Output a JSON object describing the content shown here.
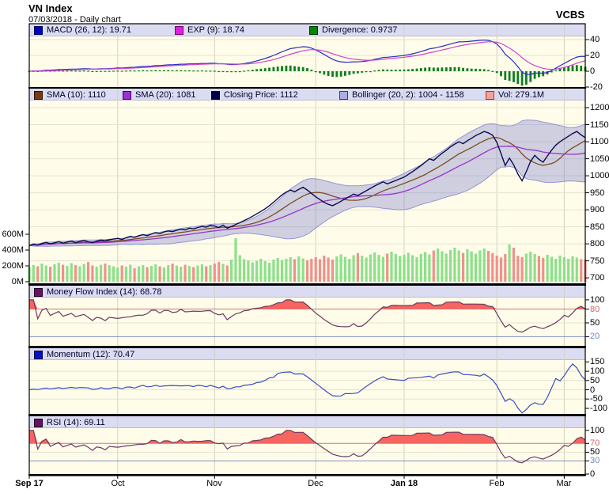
{
  "header": {
    "title": "VN Index",
    "subtitle": "07/03/2018 - Daily chart",
    "brand": "VCBS"
  },
  "panels": {
    "macd": {
      "legend": [
        {
          "label": "MACD (26, 12): 19.71",
          "color": "#0000cc",
          "border": "#000055"
        },
        {
          "label": "EXP (9): 18.74",
          "color": "#dd22dd",
          "border": "#770077"
        },
        {
          "label": "Divergence: 0.9737",
          "color": "#008800",
          "border": "#003300"
        }
      ]
    },
    "price": {
      "legend": [
        {
          "label": "SMA (10): 1110",
          "color": "#7b3a10",
          "border": "#2a1204"
        },
        {
          "label": "SMA (20): 1081",
          "color": "#9933cc",
          "border": "#440066"
        },
        {
          "label": "Closing Price: 1112",
          "color": "#000044",
          "border": "#000022"
        },
        {
          "label": "Bollinger (20, 2): 1004 - 1158",
          "color": "#a9aee6",
          "border": "#3333aa"
        },
        {
          "label": "Vol: 279.1M",
          "color": "#f2a29b",
          "border": "#aa3333"
        }
      ]
    },
    "mfi": {
      "legend": [
        {
          "label": "Money Flow Index (14): 68.78",
          "color": "#661166",
          "border": "#220022"
        }
      ]
    },
    "momentum": {
      "legend": [
        {
          "label": "Momentum (12): 70.47",
          "color": "#0011cc",
          "border": "#000044"
        }
      ]
    },
    "rsi": {
      "legend": [
        {
          "label": "RSI (14): 69.11",
          "color": "#661166",
          "border": "#220022"
        }
      ]
    }
  },
  "colors": {
    "panel_bg": "#fffde9",
    "legend_bg": "#dbdcf2",
    "legend_edge": "#9a9ac0",
    "grid_h": "#e3e3d3",
    "grid_v": "#d2d2c2",
    "border": "#000000",
    "close_line": "#0a0a50",
    "sma10_line": "#7d4b21",
    "sma20_line": "#9933cc",
    "band_fill": "rgba(128,131,208,0.38)",
    "band_edge": "#9595d6",
    "vol_up": "#8ce08c",
    "vol_down": "#f0918c",
    "macd_line": "#2a2ac8",
    "signal_line": "#cc44cc",
    "hist_bar": "#0d7d22",
    "osc_line": "#6d3862",
    "osc_fill": "#f8645f",
    "momentum_line": "#3a4fc0",
    "overbought_line": "#cc7777",
    "oversold_line": "#8090c8",
    "overbought_text": "#cc6666",
    "oversold_text": "#7788bb"
  },
  "chart_data": {
    "type": "multi-panel-financial-line",
    "title": "VN Index",
    "date": "07/03/2018",
    "interval": "Daily chart",
    "x_months": [
      {
        "label": "Sep 17",
        "day": 0,
        "bold": true
      },
      {
        "label": "Oct",
        "day": 21,
        "bold": false
      },
      {
        "label": "Nov",
        "day": 44,
        "bold": false
      },
      {
        "label": "Dec",
        "day": 68,
        "bold": false
      },
      {
        "label": "Jan 18",
        "day": 89,
        "bold": true
      },
      {
        "label": "Feb",
        "day": 111,
        "bold": false
      },
      {
        "label": "Mar",
        "day": 127,
        "bold": false
      }
    ],
    "close": [
      795,
      799,
      796,
      801,
      804,
      800,
      803,
      806,
      802,
      805,
      808,
      804,
      807,
      810,
      806,
      803,
      808,
      811,
      809,
      812,
      814,
      816,
      813,
      818,
      822,
      819,
      824,
      827,
      824,
      829,
      833,
      830,
      835,
      838,
      836,
      840,
      843,
      841,
      846,
      844,
      848,
      851,
      849,
      854,
      852,
      848,
      855,
      846,
      851,
      857,
      862,
      868,
      874,
      881,
      888,
      895,
      903,
      912,
      922,
      933,
      944,
      952,
      958,
      953,
      960,
      966,
      958,
      948,
      938,
      930,
      922,
      916,
      912,
      918,
      925,
      932,
      939,
      946,
      942,
      949,
      956,
      963,
      970,
      976,
      982,
      976,
      981,
      986,
      991,
      996,
      1004,
      1012,
      1021,
      1030,
      1040,
      1050,
      1045,
      1056,
      1066,
      1075,
      1085,
      1093,
      1100,
      1094,
      1103,
      1110,
      1118,
      1124,
      1130,
      1126,
      1119,
      1098,
      1065,
      1030,
      1052,
      1032,
      1005,
      985,
      1012,
      1042,
      1060,
      1048,
      1040,
      1058,
      1075,
      1090,
      1100,
      1108,
      1116,
      1124,
      1130,
      1120,
      1112
    ],
    "volume_m": [
      185,
      210,
      195,
      230,
      205,
      190,
      220,
      240,
      215,
      200,
      235,
      210,
      195,
      225,
      250,
      205,
      190,
      215,
      230,
      210,
      195,
      180,
      205,
      190,
      215,
      170,
      195,
      210,
      185,
      200,
      220,
      195,
      180,
      210,
      230,
      205,
      190,
      215,
      200,
      185,
      205,
      220,
      195,
      210,
      230,
      250,
      225,
      205,
      280,
      550,
      335,
      285,
      270,
      245,
      265,
      290,
      260,
      240,
      280,
      300,
      275,
      290,
      310,
      285,
      320,
      295,
      270,
      290,
      310,
      285,
      330,
      305,
      280,
      320,
      345,
      315,
      290,
      335,
      360,
      330,
      305,
      345,
      370,
      340,
      315,
      355,
      380,
      350,
      325,
      340,
      365,
      335,
      310,
      350,
      375,
      345,
      395,
      420,
      385,
      355,
      400,
      430,
      395,
      365,
      410,
      385,
      355,
      395,
      420,
      390,
      360,
      330,
      305,
      350,
      470,
      430,
      330,
      310,
      355,
      380,
      350,
      325,
      300,
      340,
      315,
      290,
      330,
      310,
      290,
      320,
      305,
      285,
      279
    ],
    "indicators": {
      "sma_periods": [
        10,
        20
      ],
      "bollinger": {
        "period": 20,
        "mult": 2
      },
      "macd": {
        "slow": 26,
        "fast": 12,
        "signal": 9
      },
      "mfi_period": 14,
      "momentum_period": 12,
      "rsi_period": 14,
      "current": {
        "sma10": 1110,
        "sma20": 1081,
        "close": 1112,
        "bollinger_low": 1004,
        "bollinger_high": 1158,
        "volume": "279.1M",
        "macd": 19.71,
        "macd_signal": 18.74,
        "macd_divergence": 0.9737,
        "mfi": 68.78,
        "momentum": 70.47,
        "rsi": 69.11
      }
    },
    "axes": {
      "macd": {
        "ticks": [
          {
            "v": 40
          },
          {
            "v": 20
          },
          {
            "v": 0
          },
          {
            "v": -20
          }
        ],
        "range": [
          -20,
          44
        ]
      },
      "price": {
        "ticks": [
          {
            "v": 1200
          },
          {
            "v": 1150
          },
          {
            "v": 1100
          },
          {
            "v": 1050
          },
          {
            "v": 1000
          },
          {
            "v": 950
          },
          {
            "v": 900
          },
          {
            "v": 850
          },
          {
            "v": 800
          },
          {
            "v": 750
          },
          {
            "v": 700
          }
        ],
        "range": [
          684,
          1221
        ]
      },
      "volume_left_ticks": [
        {
          "label": "600M",
          "v": 600
        },
        {
          "label": "400M",
          "v": 400
        },
        {
          "label": "200M",
          "v": 200
        },
        {
          "label": "0M",
          "v": 0
        }
      ],
      "mfi": {
        "ticks": [
          {
            "v": 100
          },
          {
            "v": 80,
            "c": "overbought"
          },
          {
            "v": 50
          },
          {
            "v": 20,
            "c": "oversold"
          }
        ],
        "range": [
          0,
          105
        ],
        "overbought": 80,
        "oversold": 20
      },
      "momentum": {
        "ticks": [
          {
            "v": 150
          },
          {
            "v": 100
          },
          {
            "v": 50
          },
          {
            "v": 0
          },
          {
            "v": -50
          },
          {
            "v": -100
          }
        ],
        "range": [
          -130,
          160
        ]
      },
      "rsi": {
        "ticks": [
          {
            "v": 100
          },
          {
            "v": 70,
            "c": "overbought"
          },
          {
            "v": 50
          },
          {
            "v": 30,
            "c": "oversold"
          },
          {
            "v": 0
          }
        ],
        "range": [
          0,
          105
        ],
        "overbought": 70,
        "oversold": 30
      }
    }
  }
}
